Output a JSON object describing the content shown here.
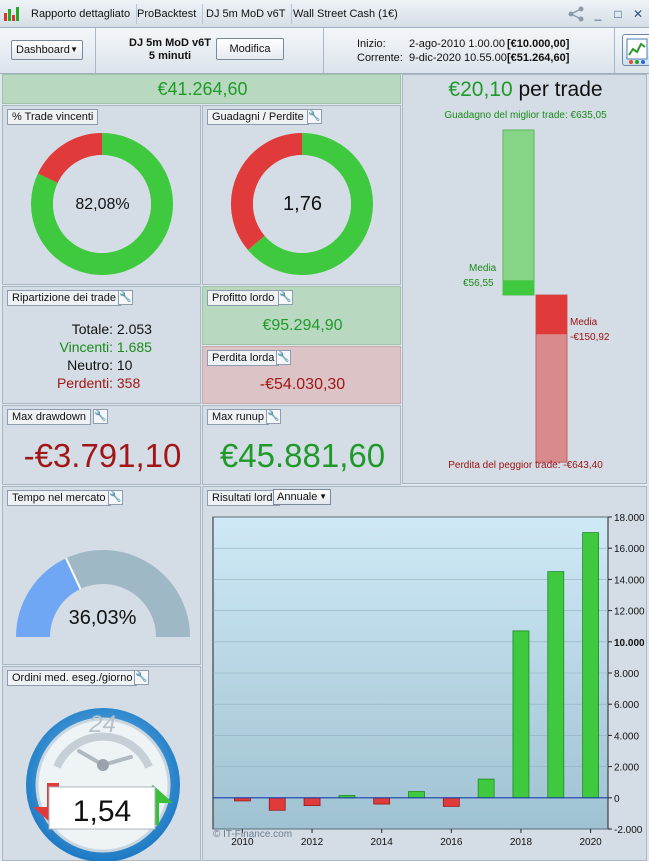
{
  "tabs": [
    "Rapporto dettagliato",
    "ProBacktest",
    "DJ 5m MoD v6T",
    "Wall Street Cash (1€)"
  ],
  "window": {
    "minimize": "_",
    "maximize": "□",
    "close": "✕"
  },
  "toolbar": {
    "dashboard_label": "Dashboard",
    "system_name": "DJ 5m MoD v6T",
    "timeframe": "5 minuti",
    "modifica_label": "Modifica",
    "start_label": "Inizio:",
    "start_date": "2-ago-2010 1.00.00",
    "start_capital": "[€10.000,00]",
    "current_label": "Corrente:",
    "current_date": "9-dic-2020 10.55.00",
    "current_capital": "[€51.264,60]"
  },
  "summary": {
    "net_gain": "€41.264,60"
  },
  "per_trade": {
    "value": "€20,10",
    "suffix": "per trade",
    "best_label": "Guadagno del miglior trade: €635,05",
    "worst_label": "Perdita del peggior trade: -€643,40",
    "avg_gain_label": "Media",
    "avg_gain_value": "€56,55",
    "avg_loss_label": "Media",
    "avg_loss_value": "-€150,92",
    "best": 635.05,
    "worst": -643.4,
    "avg_gain": 56.55,
    "avg_loss": -150.92
  },
  "win_pct": {
    "title": "% Trade vincenti",
    "value": "82,08%",
    "ratio": 0.8208
  },
  "gain_loss": {
    "title": "Guadagni / Perdite",
    "value": "1,76",
    "ratio": 1.76
  },
  "breakdown": {
    "title": "Ripartizione dei trade",
    "total_label": "Totale:",
    "total": "2.053",
    "win_label": "Vincenti:",
    "win": "1.685",
    "neutral_label": "Neutro:",
    "neutral": "10",
    "loss_label": "Perdenti:",
    "loss": "358"
  },
  "gross_profit": {
    "title": "Profitto lordo",
    "value": "€95.294,90"
  },
  "gross_loss": {
    "title": "Perdita lorda",
    "value": "-€54.030,30"
  },
  "max_drawdown": {
    "title": "Max drawdown",
    "value": "-€3.791,10"
  },
  "max_runup": {
    "title": "Max runup",
    "value": "€45.881,60"
  },
  "time_in_market": {
    "title": "Tempo nel mercato",
    "value": "36,03%",
    "ratio": 0.3603
  },
  "orders": {
    "title": "Ordini med. eseg./giorno",
    "dial_label": "24",
    "value": "1,54"
  },
  "gross_results": {
    "title": "Risultati lordi",
    "period": "Annuale",
    "watermark": "© IT-Finance.com"
  },
  "colors": {
    "green": "#3ec93e",
    "red": "#e03a3a",
    "blue_gauge": "#6fa7f5",
    "grey_gauge": "#9fb8c6"
  },
  "chart_data": {
    "type": "bar",
    "title": "Risultati lordi",
    "categories": [
      "2010",
      "2011",
      "2012",
      "2013",
      "2014",
      "2015",
      "2016",
      "2017",
      "2018",
      "2019",
      "2020"
    ],
    "values": [
      -200,
      -800,
      -500,
      150,
      -400,
      400,
      -550,
      1200,
      10700,
      14500,
      17000
    ],
    "x_tick_labels": [
      "2010",
      "2012",
      "2014",
      "2016",
      "2018",
      "2020"
    ],
    "y_tick_labels": [
      "18.000",
      "16.000",
      "14.000",
      "12.000",
      "10.000",
      "8.000",
      "6.000",
      "4.000",
      "2.000",
      "0",
      "-2.000"
    ],
    "ylim": [
      -2000,
      18000
    ],
    "xlabel": "",
    "ylabel": "",
    "grid": true
  }
}
